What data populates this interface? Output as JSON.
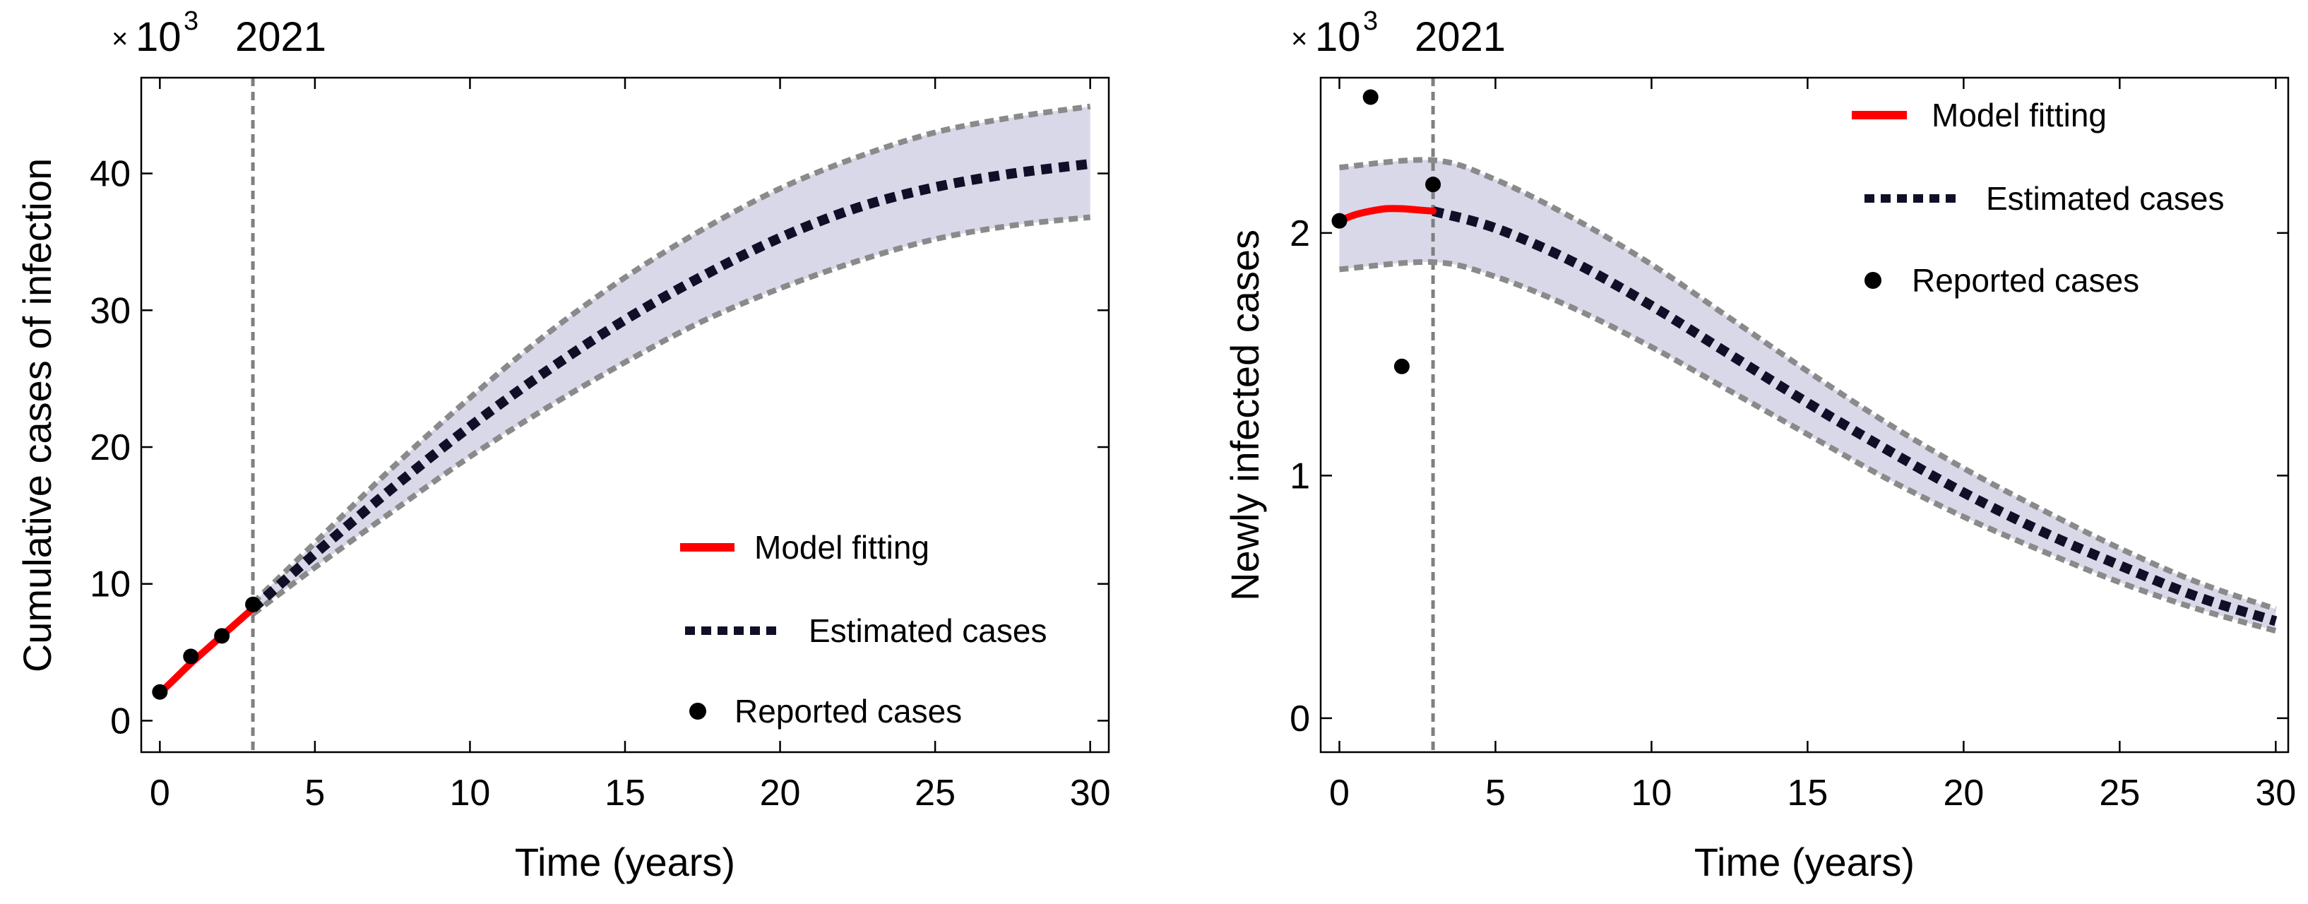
{
  "colors": {
    "band_fill": "#d9d8e8",
    "bound_line": "#8a8a8a",
    "estimated_line": "#0f0f28",
    "fit_line": "#ff0000",
    "points": "#000000",
    "vline": "#808080"
  },
  "chart_data": [
    {
      "type": "line",
      "xlabel": "Time (years)",
      "ylabel": "Cumulative cases of infection",
      "scale": {
        "times": "×",
        "base": "10",
        "exponent": "3",
        "year": "2021"
      },
      "xlim": [
        -0.6,
        30.6
      ],
      "ylim": [
        -2.3,
        47
      ],
      "xticks": [
        0,
        5,
        10,
        15,
        20,
        25,
        30
      ],
      "yticks": [
        0,
        10,
        20,
        30,
        40
      ],
      "xtick_labels": [
        "0",
        "5",
        "10",
        "15",
        "20",
        "25",
        "30"
      ],
      "ytick_labels": [
        "0",
        "10",
        "20",
        "30",
        "40"
      ],
      "vline_x": 3,
      "legend": {
        "position": "bottom-right",
        "fit": "Model fitting",
        "estimated": "Estimated cases",
        "reported": "Reported cases"
      },
      "series": [
        {
          "name": "Model fitting",
          "x": [
            0,
            0.5,
            1,
            1.5,
            2,
            2.5,
            3
          ],
          "values": [
            2.0,
            3.1,
            4.2,
            5.2,
            6.2,
            7.2,
            8.2
          ]
        },
        {
          "name": "Estimated cases",
          "x": [
            3,
            5,
            7.5,
            10,
            12.5,
            15,
            17.5,
            20,
            22.5,
            25,
            27.5,
            30
          ],
          "values": [
            8.2,
            12.2,
            17.0,
            21.5,
            25.6,
            29.3,
            32.5,
            35.3,
            37.5,
            39.0,
            40.0,
            40.7
          ]
        },
        {
          "name": "Upper bound",
          "x": [
            3,
            5,
            7.5,
            10,
            12.5,
            15,
            17.5,
            20,
            22.5,
            25,
            27.5,
            30
          ],
          "values": [
            8.6,
            13.0,
            18.5,
            23.6,
            28.3,
            32.4,
            35.9,
            38.9,
            41.2,
            43.0,
            44.1,
            44.9
          ]
        },
        {
          "name": "Lower bound",
          "x": [
            3,
            5,
            7.5,
            10,
            12.5,
            15,
            17.5,
            20,
            22.5,
            25,
            27.5,
            30
          ],
          "values": [
            7.8,
            11.2,
            15.3,
            19.3,
            22.9,
            26.2,
            29.2,
            31.6,
            33.6,
            35.2,
            36.2,
            36.8
          ]
        },
        {
          "name": "Reported cases",
          "x": [
            0,
            1,
            2,
            3
          ],
          "values": [
            2.1,
            4.7,
            6.2,
            8.5
          ]
        }
      ]
    },
    {
      "type": "line",
      "xlabel": "Time (years)",
      "ylabel": "Newly infected cases",
      "scale": {
        "times": "×",
        "base": "10",
        "exponent": "3",
        "year": "2021"
      },
      "xlim": [
        -0.6,
        30.4
      ],
      "ylim": [
        -0.14,
        2.64
      ],
      "xticks": [
        0,
        5,
        10,
        15,
        20,
        25,
        30
      ],
      "yticks": [
        0,
        1,
        2
      ],
      "xtick_labels": [
        "0",
        "5",
        "10",
        "15",
        "20",
        "25",
        "30"
      ],
      "ytick_labels": [
        "0",
        "1",
        "2"
      ],
      "vline_x": 3,
      "legend": {
        "position": "top-right",
        "fit": "Model fitting",
        "estimated": "Estimated cases",
        "reported": "Reported cases"
      },
      "series": [
        {
          "name": "Model fitting",
          "x": [
            0,
            0.5,
            1,
            1.5,
            2,
            2.5,
            3
          ],
          "values": [
            2.05,
            2.075,
            2.09,
            2.1,
            2.1,
            2.095,
            2.09
          ]
        },
        {
          "name": "Estimated cases",
          "x": [
            3,
            5,
            7.5,
            10,
            12.5,
            15,
            17.5,
            20,
            22.5,
            25,
            27.5,
            30
          ],
          "values": [
            2.09,
            2.02,
            1.88,
            1.7,
            1.5,
            1.3,
            1.11,
            0.93,
            0.77,
            0.63,
            0.5,
            0.4
          ]
        },
        {
          "name": "Upper bound",
          "x": [
            0,
            3,
            5,
            7.5,
            10,
            12.5,
            15,
            17.5,
            20,
            22.5,
            25,
            27.5,
            30
          ],
          "values": [
            2.27,
            2.3,
            2.22,
            2.06,
            1.87,
            1.65,
            1.43,
            1.22,
            1.03,
            0.86,
            0.7,
            0.56,
            0.45
          ]
        },
        {
          "name": "Lower bound",
          "x": [
            0,
            3,
            5,
            7.5,
            10,
            12.5,
            15,
            17.5,
            20,
            22.5,
            25,
            27.5,
            30
          ],
          "values": [
            1.85,
            1.88,
            1.82,
            1.69,
            1.53,
            1.35,
            1.17,
            0.99,
            0.83,
            0.69,
            0.56,
            0.45,
            0.36
          ]
        },
        {
          "name": "Reported cases",
          "x": [
            0,
            1,
            2,
            3
          ],
          "values": [
            2.05,
            2.56,
            1.45,
            2.2
          ]
        }
      ]
    }
  ]
}
